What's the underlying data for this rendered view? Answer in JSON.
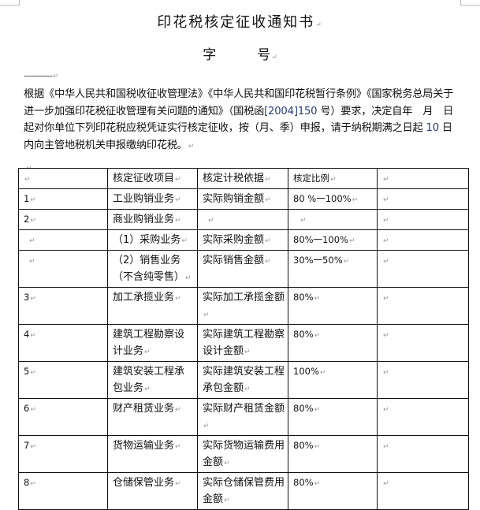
{
  "document": {
    "title": "印花税核定征收通知书",
    "number_line": {
      "left": "字",
      "right": "号"
    },
    "dash_line": "----------------",
    "paragraph": {
      "part1": "根据《中华人民共和国税收征收管理法》《中华人民共和国印花税暂行条例》《国家税务总局关于进一步加强印花税征收管理有关问题的通知》（国税函",
      "doc_no": "[2004]150",
      "part2": " 号）要求，决定自年　月　日起对你单位下列印花税应税凭证实行核定征收，按（月、季）申报，请于纳税期满之日起 ",
      "days": "10",
      "part3": " 日内向主管地税机关申报缴纳印花税。"
    }
  },
  "table": {
    "headers": [
      "",
      "核定征收项目",
      "核定计税依据",
      "核定比例",
      ""
    ],
    "rows": [
      [
        "1",
        "工业购销业务",
        "实际购销金额",
        "80 %一100%",
        ""
      ],
      [
        "2",
        "商业购销业务",
        "",
        "",
        ""
      ],
      [
        "",
        "（1）采购业务",
        "实际采购金额",
        "80%一100%",
        ""
      ],
      [
        "",
        "（2）销售业务（不含纯零售）",
        "实际销售金额",
        "30%一50%",
        ""
      ],
      [
        "3",
        "加工承揽业务",
        "实际加工承揽金额",
        "80%",
        ""
      ],
      [
        "4",
        "建筑工程勘察设计业务",
        "实际建筑工程勘察设计金额",
        "80%",
        ""
      ],
      [
        "5",
        "建筑安装工程承包业务",
        "实际建筑安装工程承包金额",
        "100%",
        ""
      ],
      [
        "6",
        "财产租赁业务",
        "实际财产租赁金额",
        "80%",
        ""
      ],
      [
        "7",
        "货物运输业务",
        "实际货物运输费用金额",
        "80%",
        ""
      ],
      [
        "8",
        "仓储保管业务",
        "实际仓储保管费用金额",
        "80%",
        ""
      ]
    ]
  }
}
